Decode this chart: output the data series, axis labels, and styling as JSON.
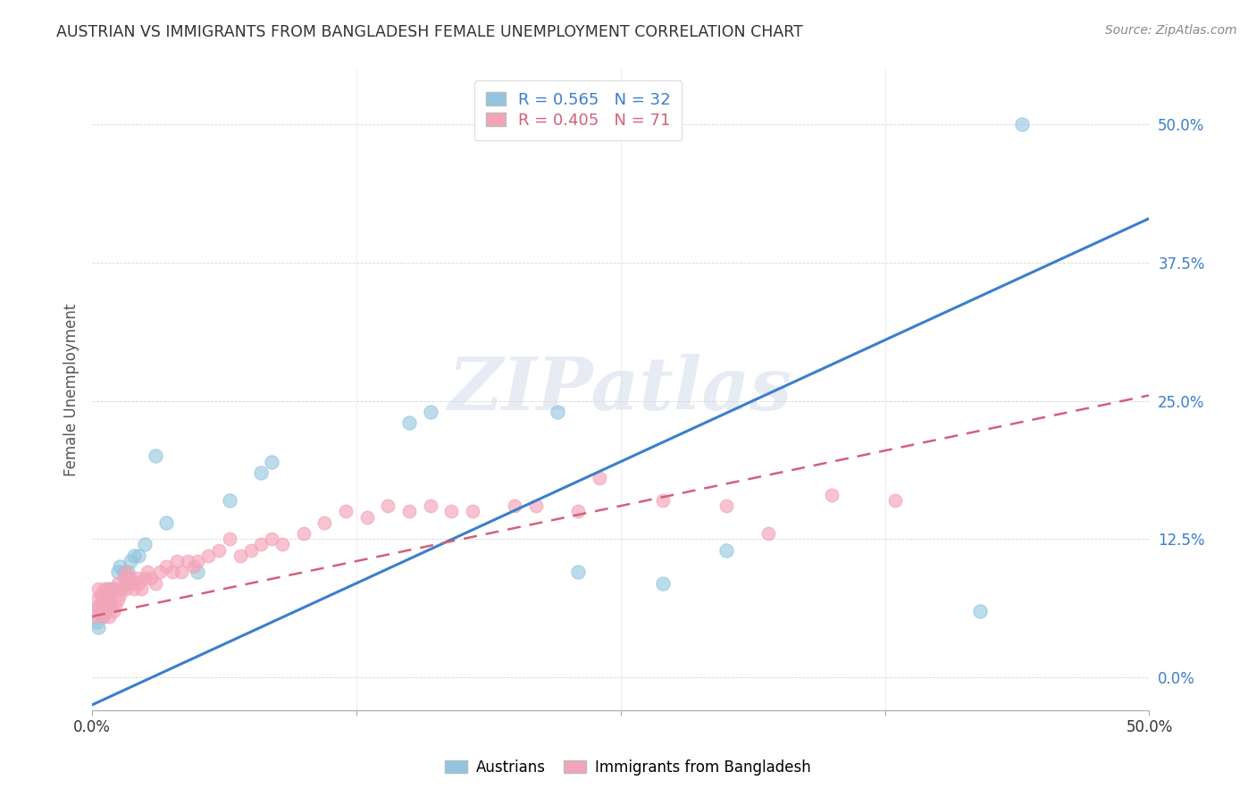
{
  "title": "AUSTRIAN VS IMMIGRANTS FROM BANGLADESH FEMALE UNEMPLOYMENT CORRELATION CHART",
  "source": "Source: ZipAtlas.com",
  "ylabel": "Female Unemployment",
  "ytick_labels": [
    "0.0%",
    "12.5%",
    "25.0%",
    "37.5%",
    "50.0%"
  ],
  "ytick_values": [
    0.0,
    0.125,
    0.25,
    0.375,
    0.5
  ],
  "xlim": [
    0.0,
    0.5
  ],
  "ylim": [
    -0.03,
    0.55
  ],
  "legend_austrians": "Austrians",
  "legend_bangladesh": "Immigrants from Bangladesh",
  "R_austrians": 0.565,
  "N_austrians": 32,
  "R_bangladesh": 0.405,
  "N_bangladesh": 71,
  "blue_color": "#92c5de",
  "pink_color": "#f4a4b8",
  "blue_line_color": "#3a7fcc",
  "pink_line_color": "#d4607a",
  "background_color": "#ffffff",
  "watermark": "ZIPatlas",
  "blue_line_slope": 0.88,
  "blue_line_intercept": -0.025,
  "pink_line_slope": 0.4,
  "pink_line_intercept": 0.055,
  "austrians_x": [
    0.002,
    0.003,
    0.004,
    0.005,
    0.005,
    0.006,
    0.007,
    0.008,
    0.01,
    0.012,
    0.013,
    0.015,
    0.016,
    0.017,
    0.018,
    0.02,
    0.022,
    0.025,
    0.03,
    0.035,
    0.05,
    0.065,
    0.08,
    0.085,
    0.15,
    0.16,
    0.22,
    0.23,
    0.27,
    0.3,
    0.42,
    0.44
  ],
  "austrians_y": [
    0.05,
    0.045,
    0.06,
    0.055,
    0.07,
    0.06,
    0.075,
    0.08,
    0.08,
    0.095,
    0.1,
    0.095,
    0.085,
    0.095,
    0.105,
    0.11,
    0.11,
    0.12,
    0.2,
    0.14,
    0.095,
    0.16,
    0.185,
    0.195,
    0.23,
    0.24,
    0.24,
    0.095,
    0.085,
    0.115,
    0.06,
    0.5
  ],
  "bangladesh_x": [
    0.001,
    0.002,
    0.002,
    0.003,
    0.003,
    0.004,
    0.004,
    0.005,
    0.005,
    0.006,
    0.006,
    0.007,
    0.007,
    0.008,
    0.008,
    0.009,
    0.01,
    0.01,
    0.011,
    0.012,
    0.012,
    0.013,
    0.014,
    0.015,
    0.016,
    0.016,
    0.017,
    0.018,
    0.019,
    0.02,
    0.021,
    0.022,
    0.023,
    0.025,
    0.026,
    0.028,
    0.03,
    0.032,
    0.035,
    0.038,
    0.04,
    0.042,
    0.045,
    0.048,
    0.05,
    0.055,
    0.06,
    0.065,
    0.07,
    0.075,
    0.08,
    0.085,
    0.09,
    0.1,
    0.11,
    0.12,
    0.13,
    0.14,
    0.15,
    0.16,
    0.17,
    0.18,
    0.2,
    0.21,
    0.23,
    0.24,
    0.27,
    0.3,
    0.32,
    0.35,
    0.38
  ],
  "bangladesh_y": [
    0.055,
    0.06,
    0.07,
    0.065,
    0.08,
    0.06,
    0.075,
    0.055,
    0.07,
    0.06,
    0.08,
    0.065,
    0.08,
    0.055,
    0.07,
    0.065,
    0.06,
    0.08,
    0.065,
    0.07,
    0.085,
    0.075,
    0.08,
    0.09,
    0.08,
    0.095,
    0.085,
    0.09,
    0.085,
    0.08,
    0.09,
    0.085,
    0.08,
    0.09,
    0.095,
    0.09,
    0.085,
    0.095,
    0.1,
    0.095,
    0.105,
    0.095,
    0.105,
    0.1,
    0.105,
    0.11,
    0.115,
    0.125,
    0.11,
    0.115,
    0.12,
    0.125,
    0.12,
    0.13,
    0.14,
    0.15,
    0.145,
    0.155,
    0.15,
    0.155,
    0.15,
    0.15,
    0.155,
    0.155,
    0.15,
    0.18,
    0.16,
    0.155,
    0.13,
    0.165,
    0.16
  ]
}
